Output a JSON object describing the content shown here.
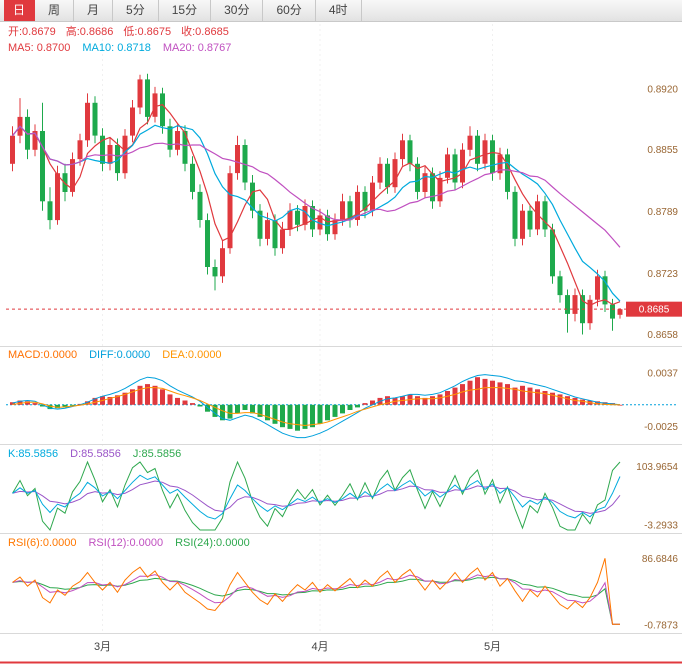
{
  "tabs": {
    "active_index": 0,
    "items": [
      {
        "label": "日",
        "name": "tab-daily"
      },
      {
        "label": "周",
        "name": "tab-weekly"
      },
      {
        "label": "月",
        "name": "tab-monthly"
      },
      {
        "label": "5分",
        "name": "tab-5min"
      },
      {
        "label": "15分",
        "name": "tab-15min"
      },
      {
        "label": "30分",
        "name": "tab-30min"
      },
      {
        "label": "60分",
        "name": "tab-60min"
      },
      {
        "label": "4时",
        "name": "tab-4hour"
      }
    ]
  },
  "header": {
    "ohlc": [
      {
        "text": "开:0.8679",
        "color": "#e0393e",
        "name": "open-readout"
      },
      {
        "text": "高:0.8686",
        "color": "#e0393e",
        "name": "high-readout"
      },
      {
        "text": "低:0.8675",
        "color": "#e0393e",
        "name": "low-readout"
      },
      {
        "text": "收:0.8685",
        "color": "#e0393e",
        "name": "close-readout"
      }
    ],
    "ma": [
      {
        "text": "MA5: 0.8700",
        "color": "#e0393e",
        "name": "ma5-readout"
      },
      {
        "text": "MA10: 0.8718",
        "color": "#00aadd",
        "name": "ma10-readout"
      },
      {
        "text": "MA20: 0.8767",
        "color": "#c050c0",
        "name": "ma20-readout"
      }
    ]
  },
  "panels": {
    "macd": {
      "labels": [
        {
          "text": "MACD:0.0000",
          "color": "#ff7000",
          "name": "macd-value-readout"
        },
        {
          "text": "DIFF:0.0000",
          "color": "#00a0dc",
          "name": "diff-value-readout"
        },
        {
          "text": "DEA:0.0000",
          "color": "#ff9500",
          "name": "dea-value-readout"
        }
      ]
    },
    "kdj": {
      "labels": [
        {
          "text": "K:85.5856",
          "color": "#00aadd",
          "name": "k-value-readout"
        },
        {
          "text": "D:85.5856",
          "color": "#9a55c8",
          "name": "d-value-readout"
        },
        {
          "text": "J:85.5856",
          "color": "#2ea84e",
          "name": "j-value-readout"
        }
      ]
    },
    "rsi": {
      "labels": [
        {
          "text": "RSI(6):0.0000",
          "color": "#ff7700",
          "name": "rsi6-value-readout"
        },
        {
          "text": "RSI(12):0.0000",
          "color": "#c050c0",
          "name": "rsi12-value-readout"
        },
        {
          "text": "RSI(24):0.0000",
          "color": "#2ea84e",
          "name": "rsi24-value-readout"
        }
      ]
    }
  },
  "colors": {
    "up": "#e0393e",
    "down": "#1ea94c",
    "ma5": "#e0393e",
    "ma10": "#00aadd",
    "ma20": "#c050c0",
    "diff": "#00a0dc",
    "dea": "#ff9500",
    "k": "#00aadd",
    "d": "#9a55c8",
    "j": "#2ea84e",
    "rsi6": "#ff7700",
    "rsi12": "#c050c0",
    "rsi24": "#2ea84e",
    "axis_text": "#996633",
    "month_text": "#444444",
    "grid": "#f0f0f0",
    "separator": "#d9d9d9",
    "tag_bg": "#e0393e",
    "tag_text": "#ffffff",
    "bottom_accent": "#e0393e"
  },
  "chart_data": {
    "type": "candlestick",
    "title": "",
    "main": {
      "ylim": [
        0.865,
        0.894
      ],
      "yticks": [
        "0.8920",
        "0.8855",
        "0.8789",
        "0.8723",
        "0.8658"
      ],
      "last_price": 0.8685,
      "last_price_label": "0.8685",
      "ma_windows": [
        5,
        10,
        20
      ],
      "candles": [
        [
          0.884,
          0.888,
          0.8832,
          0.887
        ],
        [
          0.887,
          0.891,
          0.8862,
          0.889
        ],
        [
          0.889,
          0.8898,
          0.8845,
          0.8855
        ],
        [
          0.8855,
          0.8882,
          0.8848,
          0.8875
        ],
        [
          0.8875,
          0.8905,
          0.879,
          0.88
        ],
        [
          0.88,
          0.8815,
          0.877,
          0.878
        ],
        [
          0.878,
          0.8838,
          0.8775,
          0.883
        ],
        [
          0.883,
          0.884,
          0.88,
          0.881
        ],
        [
          0.881,
          0.8852,
          0.8805,
          0.8845
        ],
        [
          0.8845,
          0.8872,
          0.8838,
          0.8865
        ],
        [
          0.8865,
          0.8915,
          0.8858,
          0.8905
        ],
        [
          0.8905,
          0.8912,
          0.8862,
          0.887
        ],
        [
          0.887,
          0.8878,
          0.8832,
          0.884
        ],
        [
          0.884,
          0.8868,
          0.8833,
          0.886
        ],
        [
          0.886,
          0.8867,
          0.8822,
          0.883
        ],
        [
          0.883,
          0.8877,
          0.8824,
          0.887
        ],
        [
          0.887,
          0.8908,
          0.8863,
          0.89
        ],
        [
          0.89,
          0.8935,
          0.8893,
          0.893
        ],
        [
          0.893,
          0.8936,
          0.8882,
          0.889
        ],
        [
          0.889,
          0.8922,
          0.8884,
          0.8915
        ],
        [
          0.8915,
          0.8921,
          0.8872,
          0.888
        ],
        [
          0.888,
          0.8888,
          0.8847,
          0.8855
        ],
        [
          0.8855,
          0.8882,
          0.8849,
          0.8875
        ],
        [
          0.8875,
          0.8881,
          0.8832,
          0.884
        ],
        [
          0.884,
          0.8848,
          0.8802,
          0.881
        ],
        [
          0.881,
          0.8818,
          0.8772,
          0.878
        ],
        [
          0.878,
          0.8787,
          0.8722,
          0.873
        ],
        [
          0.873,
          0.8738,
          0.8705,
          0.872
        ],
        [
          0.872,
          0.8758,
          0.8713,
          0.875
        ],
        [
          0.875,
          0.8838,
          0.8744,
          0.883
        ],
        [
          0.883,
          0.887,
          0.8823,
          0.886
        ],
        [
          0.886,
          0.8866,
          0.8812,
          0.882
        ],
        [
          0.882,
          0.8828,
          0.8782,
          0.879
        ],
        [
          0.879,
          0.8797,
          0.8752,
          0.876
        ],
        [
          0.876,
          0.8788,
          0.8753,
          0.878
        ],
        [
          0.878,
          0.8786,
          0.8742,
          0.875
        ],
        [
          0.875,
          0.8778,
          0.8744,
          0.877
        ],
        [
          0.877,
          0.8798,
          0.8763,
          0.879
        ],
        [
          0.879,
          0.8796,
          0.8768,
          0.8775
        ],
        [
          0.8775,
          0.8802,
          0.8769,
          0.8795
        ],
        [
          0.8795,
          0.8801,
          0.8762,
          0.877
        ],
        [
          0.877,
          0.8792,
          0.8764,
          0.8785
        ],
        [
          0.8785,
          0.8791,
          0.8758,
          0.8765
        ],
        [
          0.8765,
          0.8787,
          0.8759,
          0.878
        ],
        [
          0.878,
          0.8808,
          0.8774,
          0.88
        ],
        [
          0.88,
          0.8806,
          0.8772,
          0.878
        ],
        [
          0.878,
          0.8817,
          0.8774,
          0.881
        ],
        [
          0.881,
          0.8816,
          0.8782,
          0.879
        ],
        [
          0.879,
          0.8827,
          0.8784,
          0.882
        ],
        [
          0.882,
          0.8847,
          0.8813,
          0.884
        ],
        [
          0.884,
          0.8846,
          0.8808,
          0.8815
        ],
        [
          0.8815,
          0.8852,
          0.8809,
          0.8845
        ],
        [
          0.8845,
          0.8872,
          0.8838,
          0.8865
        ],
        [
          0.8865,
          0.8871,
          0.8832,
          0.884
        ],
        [
          0.884,
          0.8847,
          0.8802,
          0.881
        ],
        [
          0.881,
          0.8837,
          0.8804,
          0.883
        ],
        [
          0.883,
          0.8836,
          0.8792,
          0.88
        ],
        [
          0.88,
          0.8832,
          0.8794,
          0.8825
        ],
        [
          0.8825,
          0.8857,
          0.8819,
          0.885
        ],
        [
          0.885,
          0.8856,
          0.8812,
          0.882
        ],
        [
          0.882,
          0.8862,
          0.8814,
          0.8855
        ],
        [
          0.8855,
          0.888,
          0.8848,
          0.887
        ],
        [
          0.887,
          0.8876,
          0.8832,
          0.884
        ],
        [
          0.884,
          0.8872,
          0.8834,
          0.8865
        ],
        [
          0.8865,
          0.8871,
          0.8822,
          0.883
        ],
        [
          0.883,
          0.8857,
          0.8823,
          0.885
        ],
        [
          0.885,
          0.8856,
          0.8802,
          0.881
        ],
        [
          0.881,
          0.8816,
          0.8752,
          0.876
        ],
        [
          0.876,
          0.8797,
          0.8753,
          0.879
        ],
        [
          0.879,
          0.8796,
          0.8762,
          0.877
        ],
        [
          0.877,
          0.8807,
          0.8764,
          0.88
        ],
        [
          0.88,
          0.8806,
          0.8762,
          0.877
        ],
        [
          0.877,
          0.8776,
          0.8712,
          0.872
        ],
        [
          0.872,
          0.8726,
          0.8692,
          0.87
        ],
        [
          0.87,
          0.8706,
          0.866,
          0.868
        ],
        [
          0.868,
          0.8707,
          0.8672,
          0.87
        ],
        [
          0.87,
          0.8706,
          0.8658,
          0.867
        ],
        [
          0.867,
          0.87,
          0.8663,
          0.8695
        ],
        [
          0.8695,
          0.8727,
          0.8688,
          0.872
        ],
        [
          0.872,
          0.8726,
          0.8682,
          0.869
        ],
        [
          0.869,
          0.8696,
          0.8662,
          0.8675
        ],
        [
          0.8679,
          0.8686,
          0.8675,
          0.8685
        ]
      ]
    },
    "macd": {
      "ylim": [
        -0.0042,
        0.0045
      ],
      "yticks": [
        "0.0037",
        "-0.0025"
      ],
      "hist": [
        0.0003,
        0.0005,
        0.0004,
        0.0002,
        -0.0002,
        -0.0005,
        -0.0004,
        -0.0003,
        -0.0001,
        0.0001,
        0.0004,
        0.0008,
        0.001,
        0.0009,
        0.0011,
        0.0014,
        0.0018,
        0.0022,
        0.0024,
        0.0022,
        0.0018,
        0.0012,
        0.0008,
        0.0005,
        0.0002,
        -0.0002,
        -0.0008,
        -0.0014,
        -0.0018,
        -0.0016,
        -0.001,
        -0.0006,
        -0.001,
        -0.0014,
        -0.0018,
        -0.0022,
        -0.0026,
        -0.0028,
        -0.003,
        -0.0028,
        -0.0026,
        -0.0022,
        -0.0018,
        -0.0014,
        -0.001,
        -0.0006,
        -0.0003,
        0.0002,
        0.0005,
        0.0008,
        0.001,
        0.0008,
        0.001,
        0.0012,
        0.001,
        0.0008,
        0.001,
        0.0012,
        0.0016,
        0.002,
        0.0024,
        0.0028,
        0.0032,
        0.003,
        0.0028,
        0.0026,
        0.0024,
        0.002,
        0.0022,
        0.002,
        0.0018,
        0.0016,
        0.0014,
        0.0012,
        0.001,
        0.0008,
        0.0006,
        0.0005,
        0.0004,
        0.0003,
        0.0002,
        0.0
      ],
      "diff": [
        0.0002,
        0.0004,
        0.0005,
        0.0004,
        0.0,
        -0.0004,
        -0.0005,
        -0.0004,
        -0.0002,
        0.0,
        0.0003,
        0.0007,
        0.001,
        0.0012,
        0.0015,
        0.0019,
        0.0024,
        0.0029,
        0.0032,
        0.0031,
        0.0028,
        0.0022,
        0.0017,
        0.0013,
        0.0009,
        0.0004,
        -0.0003,
        -0.001,
        -0.0016,
        -0.0018,
        -0.0015,
        -0.0012,
        -0.0014,
        -0.0018,
        -0.0023,
        -0.0028,
        -0.0033,
        -0.0036,
        -0.0038,
        -0.0038,
        -0.0036,
        -0.0033,
        -0.0029,
        -0.0024,
        -0.0019,
        -0.0014,
        -0.0009,
        -0.0004,
        0.0,
        0.0004,
        0.0007,
        0.0008,
        0.001,
        0.0012,
        0.0012,
        0.0011,
        0.0012,
        0.0014,
        0.0018,
        0.0022,
        0.0027,
        0.0031,
        0.0034,
        0.0035,
        0.0034,
        0.0033,
        0.0031,
        0.0028,
        0.0027,
        0.0025,
        0.0023,
        0.0021,
        0.0018,
        0.0015,
        0.0012,
        0.0009,
        0.0007,
        0.0005,
        0.0003,
        0.0002,
        0.0001,
        0.0
      ]
    },
    "kdj": {
      "ylim": [
        -12,
        112
      ],
      "yticks": [
        "103.9654",
        "-3.2933"
      ],
      "k": [
        55,
        65,
        55,
        60,
        35,
        20,
        35,
        30,
        45,
        55,
        75,
        65,
        50,
        58,
        45,
        60,
        75,
        88,
        80,
        85,
        70,
        55,
        62,
        48,
        35,
        22,
        12,
        8,
        18,
        45,
        70,
        60,
        45,
        32,
        22,
        32,
        25,
        35,
        45,
        40,
        48,
        38,
        45,
        38,
        45,
        55,
        45,
        58,
        48,
        62,
        72,
        60,
        70,
        78,
        65,
        50,
        60,
        48,
        58,
        70,
        58,
        70,
        78,
        62,
        72,
        55,
        65,
        48,
        30,
        42,
        35,
        48,
        38,
        22,
        14,
        10,
        20,
        12,
        25,
        30,
        55,
        85.59
      ]
    },
    "rsi": {
      "ylim": [
        -5,
        95
      ],
      "yticks": [
        "86.6846",
        "-0.7873"
      ],
      "rsi6": [
        55,
        62,
        50,
        58,
        35,
        28,
        45,
        38,
        50,
        56,
        68,
        55,
        45,
        55,
        42,
        58,
        68,
        75,
        62,
        70,
        55,
        45,
        55,
        42,
        35,
        28,
        20,
        18,
        30,
        52,
        68,
        55,
        42,
        32,
        26,
        40,
        30,
        42,
        52,
        45,
        55,
        42,
        52,
        44,
        52,
        60,
        48,
        58,
        50,
        62,
        70,
        55,
        65,
        72,
        58,
        45,
        58,
        46,
        56,
        68,
        55,
        66,
        74,
        58,
        68,
        50,
        60,
        44,
        30,
        45,
        36,
        50,
        38,
        26,
        20,
        30,
        22,
        35,
        55,
        86.68,
        0,
        0
      ]
    },
    "xticks": [
      {
        "label": "3月",
        "index": 12
      },
      {
        "label": "4月",
        "index": 41
      },
      {
        "label": "5月",
        "index": 64
      }
    ]
  }
}
